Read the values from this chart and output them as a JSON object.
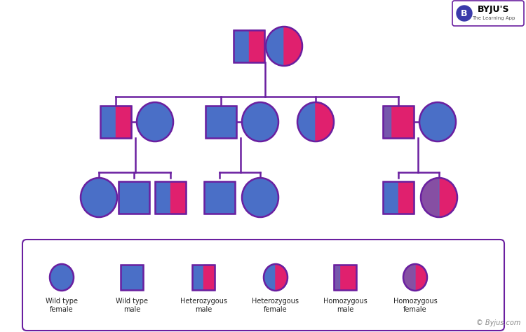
{
  "bg_color": "#ffffff",
  "line_color": "#6a1fa0",
  "blue": "#4a6fc7",
  "pink": "#e0206e",
  "legend_labels": [
    "Wild type\nfemale",
    "Wild type\nmale",
    "Heterozygous\nmale",
    "Heterozygous\nfemale",
    "Homozygous\nmale",
    "Homozygous\nfemale"
  ],
  "watermark": "© Byjus.com"
}
